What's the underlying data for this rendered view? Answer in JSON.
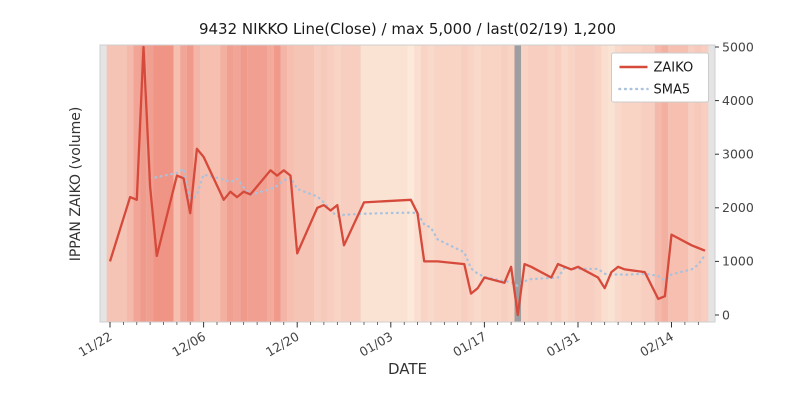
{
  "colors": {
    "zaiko_line": "#d64a3b",
    "sma_line": "#a9c2de",
    "band_low": "#fdf3e4",
    "band_high": "#ee8a7c",
    "gray_band": "#9e9ea0",
    "edge_band": "#e4e4e4",
    "frame": "#cfcfcf",
    "tick": "#333333",
    "tick_label": "#444444",
    "text": "#1a1a1a",
    "legend_border": "#cccccc",
    "legend_bg": "#ffffff"
  },
  "chart_data": {
    "type": "line",
    "title": "9432 NIKKO Line(Close) / max 5,000 / last(02/19) 1,200",
    "xlabel": "DATE",
    "ylabel": "IPPAN ZAIKO (volume)",
    "ylim": [
      0,
      5000
    ],
    "y_ticks": [
      0,
      1000,
      2000,
      3000,
      4000,
      5000
    ],
    "x_major_ticks": [
      "11/22",
      "12/06",
      "12/20",
      "01/03",
      "01/17",
      "01/31",
      "02/14"
    ],
    "legend_position": "upper right",
    "x": [
      "11/22",
      "11/25",
      "11/26",
      "11/27",
      "11/28",
      "11/29",
      "12/02",
      "12/03",
      "12/04",
      "12/05",
      "12/06",
      "12/09",
      "12/10",
      "12/11",
      "12/12",
      "12/13",
      "12/16",
      "12/17",
      "12/18",
      "12/19",
      "12/20",
      "12/23",
      "12/24",
      "12/25",
      "12/26",
      "12/27",
      "12/30",
      "01/06",
      "01/07",
      "01/08",
      "01/09",
      "01/10",
      "01/14",
      "01/15",
      "01/16",
      "01/17",
      "01/20",
      "01/21",
      "01/22",
      "01/23",
      "01/24",
      "01/27",
      "01/28",
      "01/29",
      "01/30",
      "01/31",
      "02/03",
      "02/04",
      "02/05",
      "02/06",
      "02/07",
      "02/10",
      "02/12",
      "02/13",
      "02/14",
      "02/17",
      "02/18",
      "02/19"
    ],
    "series": [
      {
        "name": "ZAIKO",
        "style": "solid",
        "color_key": "zaiko_line",
        "values": [
          1000,
          2200,
          2150,
          5000,
          2400,
          1100,
          2600,
          2550,
          1900,
          3100,
          2950,
          2150,
          2300,
          2200,
          2300,
          2250,
          2700,
          2600,
          2700,
          2600,
          1150,
          2000,
          2050,
          1950,
          2050,
          1300,
          2100,
          2150,
          1900,
          1000,
          1000,
          1000,
          950,
          400,
          500,
          700,
          600,
          900,
          0,
          950,
          900,
          700,
          950,
          900,
          850,
          900,
          700,
          500,
          800,
          900,
          850,
          800,
          300,
          350,
          1500,
          1300,
          1250,
          1200
        ]
      },
      {
        "name": "SMA5",
        "style": "dotted",
        "color_key": "sma_line",
        "derived": "sma",
        "window": 5
      }
    ],
    "background_bands": {
      "note": "per-day heat bands behind the plot; null = gray highlight band",
      "heat": [
        0.45,
        0.55,
        0.75,
        0.85,
        0.8,
        0.9,
        0.5,
        0.75,
        0.85,
        0.6,
        0.5,
        0.65,
        0.8,
        0.75,
        0.85,
        0.8,
        0.7,
        0.85,
        0.6,
        0.5,
        0.45,
        0.35,
        0.4,
        0.35,
        0.3,
        0.35,
        0.15,
        0.1,
        0.2,
        0.3,
        0.25,
        0.3,
        0.35,
        0.3,
        0.25,
        0.3,
        0.35,
        0.3,
        null,
        0.3,
        0.35,
        0.3,
        0.35,
        0.25,
        0.3,
        0.35,
        0.3,
        0.2,
        0.15,
        0.25,
        0.3,
        0.35,
        0.55,
        0.65,
        0.5,
        0.35,
        0.4,
        0.35
      ]
    }
  }
}
